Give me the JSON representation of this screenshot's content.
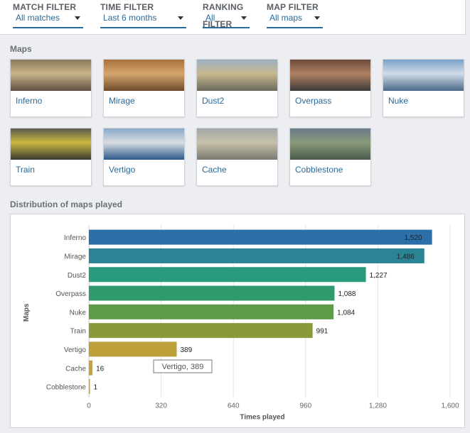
{
  "filters": [
    {
      "label": "MATCH FILTER",
      "value": "All matches"
    },
    {
      "label": "TIME FILTER",
      "value": "Last 6 months"
    },
    {
      "label": "RANKING",
      "value": "All",
      "label2": "FILTER"
    },
    {
      "label": "MAP FILTER",
      "value": "All maps"
    }
  ],
  "maps_title": "Maps",
  "maps": [
    {
      "name": "Inferno",
      "colors": [
        "#8a7a5c",
        "#c9b38a",
        "#5c5040"
      ]
    },
    {
      "name": "Mirage",
      "colors": [
        "#a8703e",
        "#d6a66e",
        "#6e4a2a"
      ]
    },
    {
      "name": "Dust2",
      "colors": [
        "#9ab0c0",
        "#c8b890",
        "#6a6a5a"
      ]
    },
    {
      "name": "Overpass",
      "colors": [
        "#6a4a3a",
        "#b08060",
        "#3a3a3a"
      ]
    },
    {
      "name": "Nuke",
      "colors": [
        "#7aa0c8",
        "#d0dce8",
        "#4a6a8a"
      ]
    },
    {
      "name": "Train",
      "colors": [
        "#5a5a50",
        "#c8b840",
        "#3a3a30"
      ]
    },
    {
      "name": "Vertigo",
      "colors": [
        "#8aa8c8",
        "#d8dde2",
        "#2a5a8a"
      ]
    },
    {
      "name": "Cache",
      "colors": [
        "#a0a8a8",
        "#c8c0a8",
        "#7a7a70"
      ]
    },
    {
      "name": "Cobblestone",
      "colors": [
        "#6a7a8a",
        "#8a9a7a",
        "#4a5a4a"
      ]
    }
  ],
  "distribution_title": "Distribution of maps played",
  "tooltip": {
    "text": "Vertigo, 389"
  },
  "chart_data": {
    "type": "bar",
    "orientation": "horizontal",
    "categories": [
      "Inferno",
      "Mirage",
      "Dust2",
      "Overpass",
      "Nuke",
      "Train",
      "Vertigo",
      "Cache",
      "Cobblestone"
    ],
    "values": [
      1520,
      1486,
      1227,
      1088,
      1084,
      991,
      389,
      16,
      1
    ],
    "value_labels": [
      "1,520",
      "1,486",
      "1,227",
      "1,088",
      "1,084",
      "991",
      "389",
      "16",
      "1"
    ],
    "bar_colors": [
      "#2b6ea8",
      "#2a8494",
      "#2a9a7c",
      "#2e9a6e",
      "#5e9a48",
      "#8a9a38",
      "#bda03a",
      "#c6a33a",
      "#c6a33a"
    ],
    "xlabel": "Times played",
    "ylabel": "Maps",
    "xlim": [
      0,
      1600
    ],
    "xticks": [
      "0",
      "320",
      "640",
      "960",
      "1,280",
      "1,600"
    ],
    "grid": "vertical"
  }
}
